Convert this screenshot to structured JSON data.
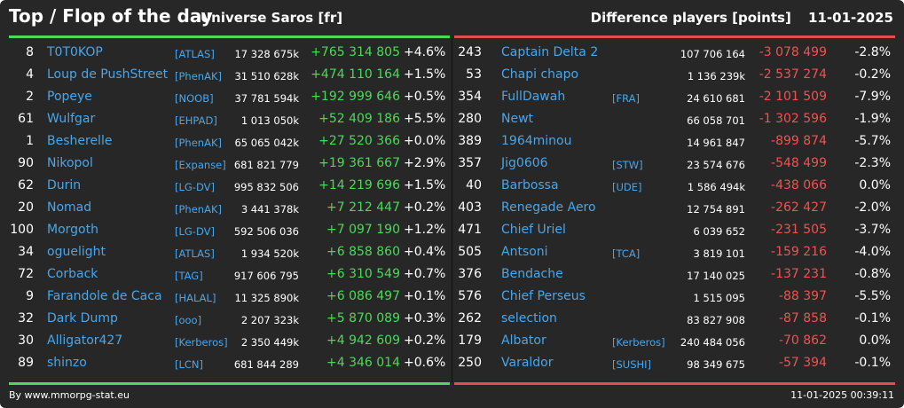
{
  "header": {
    "title": "Top / Flop of the day",
    "universe": "Universe Saros [fr]",
    "metric": "Difference players [points]",
    "date": "11-01-2025"
  },
  "colors": {
    "background": "#272727",
    "top_accent": "#4cd95a",
    "flop_accent": "#e05050",
    "name": "#4aa6e8"
  },
  "top": [
    {
      "rank": "8",
      "name": "T0T0KOP",
      "alliance": "[ATLAS]",
      "points": "17 328 675k",
      "diff": "+765 314 805",
      "pct": "+4.6%"
    },
    {
      "rank": "4",
      "name": "Loup de PushStreet",
      "alliance": "[PhenAK]",
      "points": "31 510 628k",
      "diff": "+474 110 164",
      "pct": "+1.5%"
    },
    {
      "rank": "2",
      "name": "Popeye",
      "alliance": "[NOOB]",
      "points": "37 781 594k",
      "diff": "+192 999 646",
      "pct": "+0.5%"
    },
    {
      "rank": "61",
      "name": "Wulfgar",
      "alliance": "[EHPAD]",
      "points": "1 013 050k",
      "diff": "+52 409 186",
      "pct": "+5.5%"
    },
    {
      "rank": "1",
      "name": "Besherelle",
      "alliance": "[PhenAK]",
      "points": "65 065 042k",
      "diff": "+27 520 366",
      "pct": "+0.0%"
    },
    {
      "rank": "90",
      "name": "Nikopol",
      "alliance": "[Expanse]",
      "points": "681 821 779",
      "diff": "+19 361 667",
      "pct": "+2.9%"
    },
    {
      "rank": "62",
      "name": "Durin",
      "alliance": "[LG-DV]",
      "points": "995 832 506",
      "diff": "+14 219 696",
      "pct": "+1.5%"
    },
    {
      "rank": "20",
      "name": "Nomad",
      "alliance": "[PhenAK]",
      "points": "3 441 378k",
      "diff": "+7 212 447",
      "pct": "+0.2%"
    },
    {
      "rank": "100",
      "name": "Morgoth",
      "alliance": "[LG-DV]",
      "points": "592 506 036",
      "diff": "+7 097 190",
      "pct": "+1.2%"
    },
    {
      "rank": "34",
      "name": "oguelight",
      "alliance": "[ATLAS]",
      "points": "1 934 520k",
      "diff": "+6 858 860",
      "pct": "+0.4%"
    },
    {
      "rank": "72",
      "name": "Corback",
      "alliance": "[TAG]",
      "points": "917 606 795",
      "diff": "+6 310 549",
      "pct": "+0.7%"
    },
    {
      "rank": "9",
      "name": "Farandole de Caca",
      "alliance": "[HALAL]",
      "points": "11 325 890k",
      "diff": "+6 086 497",
      "pct": "+0.1%"
    },
    {
      "rank": "32",
      "name": "Dark Dump",
      "alliance": "[ooo]",
      "points": "2 207 323k",
      "diff": "+5 870 089",
      "pct": "+0.3%"
    },
    {
      "rank": "30",
      "name": "Alligator427",
      "alliance": "[Kerberos]",
      "points": "2 350 449k",
      "diff": "+4 942 609",
      "pct": "+0.2%"
    },
    {
      "rank": "89",
      "name": "shinzo",
      "alliance": "[LCN]",
      "points": "681 844 289",
      "diff": "+4 346 014",
      "pct": "+0.6%"
    }
  ],
  "flop": [
    {
      "rank": "243",
      "name": "Captain Delta 2",
      "alliance": "",
      "points": "107 706 164",
      "diff": "-3 078 499",
      "pct": "-2.8%"
    },
    {
      "rank": "53",
      "name": "Chapi chapo",
      "alliance": "",
      "points": "1 136 239k",
      "diff": "-2 537 274",
      "pct": "-0.2%"
    },
    {
      "rank": "354",
      "name": "FullDawah",
      "alliance": "[FRA]",
      "points": "24 610 681",
      "diff": "-2 101 509",
      "pct": "-7.9%"
    },
    {
      "rank": "280",
      "name": "Newt",
      "alliance": "",
      "points": "66 058 701",
      "diff": "-1 302 596",
      "pct": "-1.9%"
    },
    {
      "rank": "389",
      "name": "1964minou",
      "alliance": "",
      "points": "14 961 847",
      "diff": "-899 874",
      "pct": "-5.7%"
    },
    {
      "rank": "357",
      "name": "Jig0606",
      "alliance": "[STW]",
      "points": "23 574 676",
      "diff": "-548 499",
      "pct": "-2.3%"
    },
    {
      "rank": "40",
      "name": "Barbossa",
      "alliance": "[UDE]",
      "points": "1 586 494k",
      "diff": "-438 066",
      "pct": "0.0%"
    },
    {
      "rank": "403",
      "name": "Renegade Aero",
      "alliance": "",
      "points": "12 754 891",
      "diff": "-262 427",
      "pct": "-2.0%"
    },
    {
      "rank": "471",
      "name": "Chief Uriel",
      "alliance": "",
      "points": "6 039 652",
      "diff": "-231 505",
      "pct": "-3.7%"
    },
    {
      "rank": "505",
      "name": "Antsoni",
      "alliance": "[TCA]",
      "points": "3 819 101",
      "diff": "-159 216",
      "pct": "-4.0%"
    },
    {
      "rank": "376",
      "name": "Bendache",
      "alliance": "",
      "points": "17 140 025",
      "diff": "-137 231",
      "pct": "-0.8%"
    },
    {
      "rank": "576",
      "name": "Chief Perseus",
      "alliance": "",
      "points": "1 515 095",
      "diff": "-88 397",
      "pct": "-5.5%"
    },
    {
      "rank": "262",
      "name": "selection",
      "alliance": "",
      "points": "83 827 908",
      "diff": "-87 858",
      "pct": "-0.1%"
    },
    {
      "rank": "179",
      "name": "Albator",
      "alliance": "[Kerberos]",
      "points": "240 484 056",
      "diff": "-70 862",
      "pct": "0.0%"
    },
    {
      "rank": "250",
      "name": "Varaldor",
      "alliance": "[SUSHI]",
      "points": "98 349 675",
      "diff": "-57 394",
      "pct": "-0.1%"
    }
  ],
  "footer": {
    "credit": "By www.mmorpg-stat.eu",
    "timestamp": "11-01-2025 00:39:11"
  }
}
